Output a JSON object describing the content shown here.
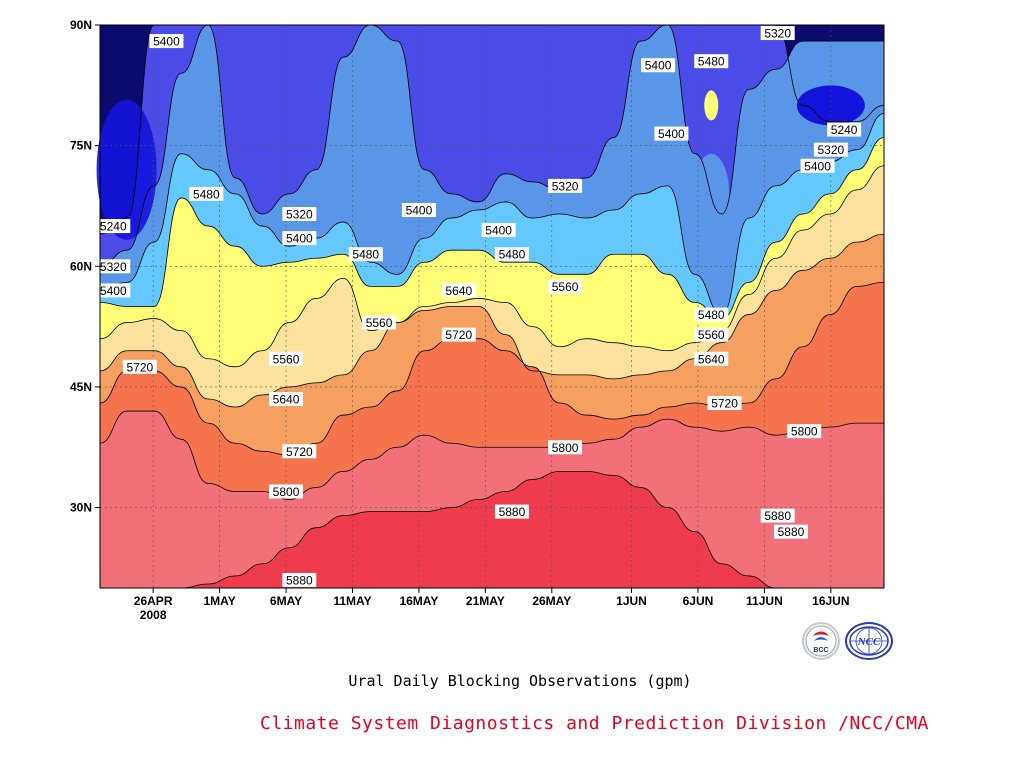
{
  "chart_data": {
    "type": "heatmap",
    "subtype": "filled contour (time–latitude Hovmöller)",
    "title": "",
    "subtitle": "Ural Daily Blocking Observations (gpm)",
    "xlabel": "",
    "ylabel": "",
    "x_ticks": [
      "26APR",
      "1MAY",
      "6MAY",
      "11MAY",
      "16MAY",
      "21MAY",
      "26MAY",
      "1JUN",
      "6JUN",
      "11JUN",
      "16JUN"
    ],
    "x_year_label": "2008",
    "x_range": [
      "2008-04-22",
      "2008-06-20"
    ],
    "y_ticks": [
      "30N",
      "45N",
      "60N",
      "75N",
      "90N"
    ],
    "y_range": [
      20,
      90
    ],
    "grid": true,
    "levels": [
      5240,
      5320,
      5400,
      5480,
      5560,
      5640,
      5720,
      5800,
      5880
    ],
    "colors": [
      "#0b0b6e",
      "#1414dc",
      "#4b4be8",
      "#5a96e8",
      "#64c8ff",
      "#ffff78",
      "#fce29c",
      "#f5a060",
      "#f5734d",
      "#f2707a",
      "#ee3c4c"
    ],
    "contour_latitudes": [
      {
        "level": 5880,
        "lat": [
          20,
          20,
          20,
          20,
          20.5,
          21.5,
          23,
          25,
          27.5,
          29,
          29.5,
          29.5,
          29.5,
          30,
          31,
          32,
          33.5,
          34.5,
          34.5,
          34,
          32.5,
          30,
          27,
          23,
          21.5,
          20,
          20,
          20,
          20,
          20
        ]
      },
      {
        "level": 5800,
        "lat": [
          38,
          42,
          42,
          38.5,
          33,
          32,
          32,
          31,
          32.5,
          34.5,
          36,
          37.5,
          39,
          38,
          37.5,
          37.5,
          37.5,
          37.5,
          38,
          38.5,
          40,
          41,
          40,
          39.5,
          40,
          39,
          39.5,
          40,
          40.5,
          40.5
        ]
      },
      {
        "level": 5720,
        "lat": [
          43,
          47,
          47,
          45,
          40.5,
          38,
          37,
          36.5,
          38,
          41.5,
          42.5,
          44.5,
          49.5,
          51,
          51,
          49.5,
          47.5,
          43,
          41.5,
          41,
          41.5,
          42.5,
          43,
          42.5,
          43,
          46,
          50,
          54,
          57.5,
          58
        ]
      },
      {
        "level": 5640,
        "lat": [
          47,
          49.5,
          49.5,
          47.5,
          43.5,
          42.5,
          44,
          45,
          45.5,
          46.5,
          49.5,
          53,
          54.5,
          55,
          55,
          51.5,
          47,
          46.5,
          46.5,
          46,
          46.5,
          47,
          48.5,
          50.5,
          54,
          57,
          59.5,
          61,
          63,
          64
        ]
      },
      {
        "level": 5560,
        "lat": [
          51,
          53,
          53.5,
          52,
          48.5,
          47.5,
          49.5,
          53,
          56,
          58.5,
          52,
          53,
          55,
          55.5,
          56,
          55.5,
          52.5,
          50,
          51,
          50.5,
          50,
          49.5,
          50.5,
          52,
          56.5,
          61,
          64.5,
          66.5,
          69.5,
          72.5
        ]
      },
      {
        "level": 5480,
        "lat": [
          55.5,
          55,
          55,
          68.5,
          65,
          62.5,
          60,
          60.5,
          61,
          61.5,
          57.5,
          57.5,
          60.5,
          62,
          62,
          60.5,
          60.5,
          59,
          59,
          61.5,
          61.5,
          59,
          55.5,
          53.5,
          58,
          63,
          66.5,
          69,
          72,
          76
        ]
      },
      {
        "level": 5400,
        "lat": [
          57,
          58,
          63,
          74,
          72,
          69,
          65,
          62.5,
          63.5,
          65.5,
          60.5,
          59,
          63.5,
          66,
          67,
          68,
          66,
          66.5,
          66,
          67,
          69,
          70,
          59,
          54,
          66,
          70,
          72,
          73,
          74.5,
          79
        ]
      },
      {
        "level": 5320,
        "lat": [
          60,
          62,
          70,
          84,
          90,
          71,
          66.5,
          69,
          72,
          86,
          90,
          88,
          72,
          69,
          68,
          71.5,
          70.5,
          69.5,
          71,
          76,
          88,
          90,
          74,
          66.5,
          82,
          84.5,
          88,
          88,
          88,
          88
        ]
      },
      {
        "level": 5240,
        "lat": [
          64,
          66,
          90,
          90,
          90,
          90,
          90,
          90,
          90,
          90,
          90,
          90,
          90,
          90,
          90,
          90,
          90,
          90,
          90,
          90,
          90,
          90,
          90,
          90,
          90,
          90,
          80,
          78,
          78,
          80
        ]
      }
    ],
    "contour_label_samples": [
      {
        "level": 5400,
        "text": "5400",
        "date": "2008-04-27",
        "lat": 88
      },
      {
        "level": 5240,
        "text": "5240",
        "date": "2008-04-23",
        "lat": 65
      },
      {
        "level": 5320,
        "text": "5320",
        "date": "2008-04-23",
        "lat": 60
      },
      {
        "level": 5400,
        "text": "5400",
        "date": "2008-04-23",
        "lat": 57
      },
      {
        "level": 5480,
        "text": "5480",
        "date": "2008-04-30",
        "lat": 69
      },
      {
        "level": 5720,
        "text": "5720",
        "date": "2008-04-25",
        "lat": 47.5
      },
      {
        "level": 5320,
        "text": "5320",
        "date": "2008-05-07",
        "lat": 66.5
      },
      {
        "level": 5400,
        "text": "5400",
        "date": "2008-05-07",
        "lat": 63.5
      },
      {
        "level": 5480,
        "text": "5480",
        "date": "2008-05-12",
        "lat": 61.5
      },
      {
        "level": 5560,
        "text": "5560",
        "date": "2008-05-06",
        "lat": 48.5
      },
      {
        "level": 5640,
        "text": "5640",
        "date": "2008-05-06",
        "lat": 43.5
      },
      {
        "level": 5720,
        "text": "5720",
        "date": "2008-05-07",
        "lat": 37
      },
      {
        "level": 5800,
        "text": "5800",
        "date": "2008-05-06",
        "lat": 32
      },
      {
        "level": 5880,
        "text": "5880",
        "date": "2008-05-07",
        "lat": 21
      },
      {
        "level": 5560,
        "text": "5560",
        "date": "2008-05-13",
        "lat": 53
      },
      {
        "level": 5400,
        "text": "5400",
        "date": "2008-05-16",
        "lat": 67
      },
      {
        "level": 5640,
        "text": "5640",
        "date": "2008-05-19",
        "lat": 57
      },
      {
        "level": 5720,
        "text": "5720",
        "date": "2008-05-19",
        "lat": 51.5
      },
      {
        "level": 5400,
        "text": "5400",
        "date": "2008-05-22",
        "lat": 64.5
      },
      {
        "level": 5480,
        "text": "5480",
        "date": "2008-05-23",
        "lat": 61.5
      },
      {
        "level": 5560,
        "text": "5560",
        "date": "2008-05-27",
        "lat": 57.5
      },
      {
        "level": 5320,
        "text": "5320",
        "date": "2008-05-27",
        "lat": 70
      },
      {
        "level": 5800,
        "text": "5800",
        "date": "2008-05-27",
        "lat": 37.5
      },
      {
        "level": 5880,
        "text": "5880",
        "date": "2008-05-23",
        "lat": 29.5
      },
      {
        "level": 5400,
        "text": "5400",
        "date": "2008-06-03",
        "lat": 85
      },
      {
        "level": 5480,
        "text": "5480",
        "date": "2008-06-07",
        "lat": 85.5
      },
      {
        "level": 5400,
        "text": "5400",
        "date": "2008-06-04",
        "lat": 76.5
      },
      {
        "level": 5320,
        "text": "5320",
        "date": "2008-06-12",
        "lat": 89
      },
      {
        "level": 5240,
        "text": "5240",
        "date": "2008-06-17",
        "lat": 77
      },
      {
        "level": 5320,
        "text": "5320",
        "date": "2008-06-16",
        "lat": 74.5
      },
      {
        "level": 5400,
        "text": "5400",
        "date": "2008-06-15",
        "lat": 72.5
      },
      {
        "level": 5480,
        "text": "5480",
        "date": "2008-06-07",
        "lat": 54
      },
      {
        "level": 5560,
        "text": "5560",
        "date": "2008-06-07",
        "lat": 51.5
      },
      {
        "level": 5640,
        "text": "5640",
        "date": "2008-06-07",
        "lat": 48.5
      },
      {
        "level": 5720,
        "text": "5720",
        "date": "2008-06-08",
        "lat": 43
      },
      {
        "level": 5800,
        "text": "5800",
        "date": "2008-06-14",
        "lat": 39.5
      },
      {
        "level": 5880,
        "text": "5880",
        "date": "2008-06-12",
        "lat": 29
      },
      {
        "level": 5880,
        "text": "5880",
        "date": "2008-06-13",
        "lat": 27
      }
    ]
  },
  "footer": {
    "subtitle": "Ural Daily Blocking Observations (gpm)",
    "credit": "Climate System Diagnostics and Prediction Division /NCC/CMA",
    "logo_left_text": "BCC",
    "logo_right_text": "NCC"
  }
}
